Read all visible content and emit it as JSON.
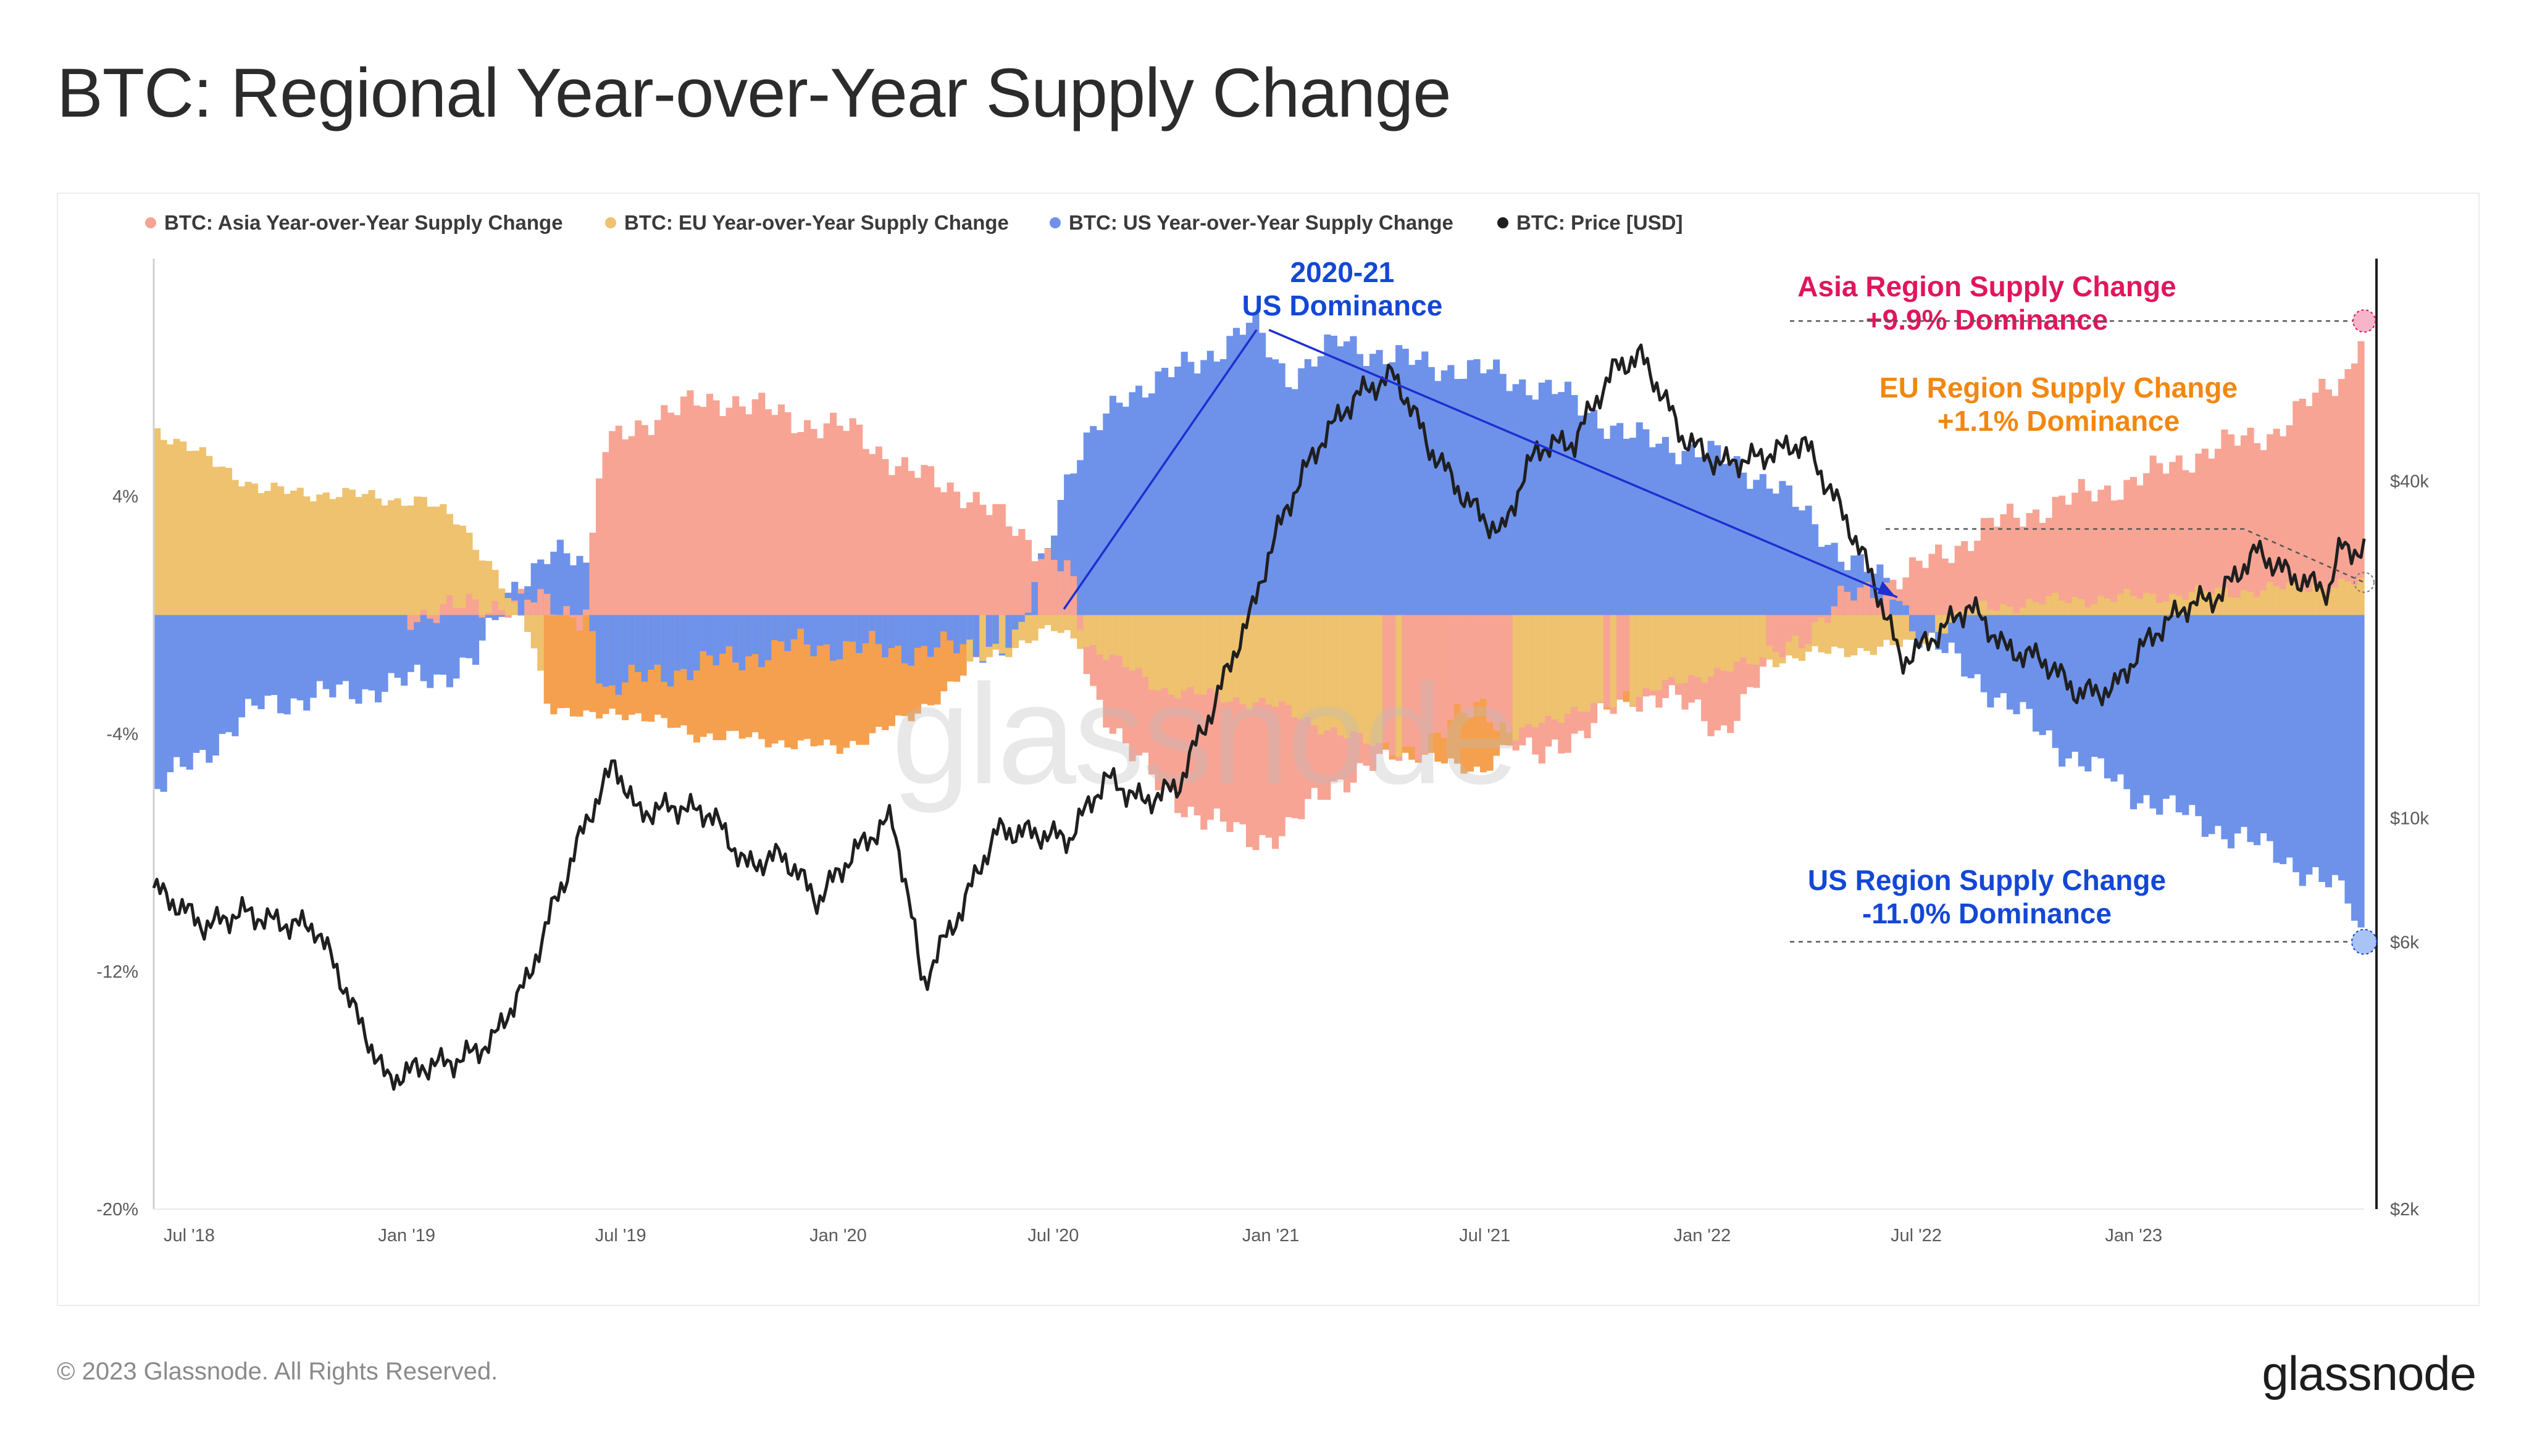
{
  "title": "BTC: Regional Year-over-Year Supply Change",
  "footer": {
    "copyright": "© 2023 Glassnode. All Rights Reserved.",
    "brand": "glassnode"
  },
  "colors": {
    "asia": "#f7a494",
    "eu": "#eec26e",
    "us": "#6e92ea",
    "price": "#1f1f1f",
    "eu_dominant": "#f5a04f",
    "us_anno": "#1347d6",
    "asia_anno": "#e0165c",
    "eu_anno": "#f2870f"
  },
  "chart_data": {
    "type": "bar",
    "legend": [
      {
        "label": "BTC: Asia Year-over-Year Supply Change",
        "color": "#f7a494"
      },
      {
        "label": "BTC: EU Year-over-Year Supply Change",
        "color": "#eec26e"
      },
      {
        "label": "BTC: US Year-over-Year Supply Change",
        "color": "#6e92ea"
      },
      {
        "label": "BTC: Price [USD]",
        "color": "#1f1f1f"
      }
    ],
    "legend_position": "top",
    "x_ticks": [
      "Jul '18",
      "Jan '19",
      "Jul '19",
      "Jan '20",
      "Jul '20",
      "Jan '21",
      "Jul '21",
      "Jan '22",
      "Jul '22",
      "Jan '23"
    ],
    "x_range": [
      "2018-06-01",
      "2023-07-15"
    ],
    "y_left": {
      "ticks": [
        "4%",
        "-4%",
        "-12%",
        "-20%"
      ],
      "range": [
        -20,
        12
      ]
    },
    "y_right": {
      "ticks": [
        "$40k",
        "$10k",
        "$6k",
        "$2k"
      ],
      "scale": "log",
      "range": [
        2000,
        100000
      ]
    },
    "series": [
      {
        "name": "BTC: Asia Year-over-Year Supply Change",
        "points": [
          [
            "2018-06-01",
            0
          ],
          [
            "2019-01-01",
            0
          ],
          [
            "2019-03-01",
            0.3
          ],
          [
            "2019-04-15",
            0.5
          ],
          [
            "2019-06-01",
            0
          ],
          [
            "2019-06-15",
            5.5
          ],
          [
            "2019-08-01",
            6.8
          ],
          [
            "2019-10-01",
            7.3
          ],
          [
            "2019-12-01",
            6.5
          ],
          [
            "2020-01-15",
            6.2
          ],
          [
            "2020-03-01",
            4.8
          ],
          [
            "2020-04-15",
            4.2
          ],
          [
            "2020-06-01",
            2.8
          ],
          [
            "2020-07-15",
            1.5
          ],
          [
            "2020-08-01",
            -2.5
          ],
          [
            "2020-10-01",
            -6
          ],
          [
            "2020-12-15",
            -7.6
          ],
          [
            "2021-01-15",
            -7.2
          ],
          [
            "2021-03-01",
            -5.5
          ],
          [
            "2021-05-01",
            -4.5
          ],
          [
            "2021-07-01",
            -3
          ],
          [
            "2021-08-15",
            -5
          ],
          [
            "2021-10-01",
            -3.5
          ],
          [
            "2021-12-01",
            -2.5
          ],
          [
            "2022-01-15",
            -4
          ],
          [
            "2022-03-01",
            -1.5
          ],
          [
            "2022-05-01",
            0.5
          ],
          [
            "2022-07-01",
            1.5
          ],
          [
            "2022-09-01",
            3
          ],
          [
            "2022-11-01",
            3.8
          ],
          [
            "2023-01-01",
            4.5
          ],
          [
            "2023-03-01",
            5.5
          ],
          [
            "2023-05-01",
            6.2
          ],
          [
            "2023-07-01",
            8.2
          ],
          [
            "2023-07-15",
            9.9
          ]
        ]
      },
      {
        "name": "BTC: EU Year-over-Year Supply Change",
        "points": [
          [
            "2018-06-01",
            6.3
          ],
          [
            "2018-09-01",
            4.2
          ],
          [
            "2018-12-01",
            4.0
          ],
          [
            "2019-01-15",
            3.8
          ],
          [
            "2019-02-15",
            3.2
          ],
          [
            "2019-03-15",
            1.5
          ],
          [
            "2019-04-01",
            0.2
          ],
          [
            "2019-04-15",
            -0.5
          ],
          [
            "2019-05-01",
            -3
          ],
          [
            "2019-06-01",
            -3.5
          ],
          [
            "2019-07-01",
            -3.2
          ],
          [
            "2019-09-01",
            -4
          ],
          [
            "2019-11-01",
            -4.2
          ],
          [
            "2020-01-01",
            -4.5
          ],
          [
            "2020-03-01",
            -3.5
          ],
          [
            "2020-05-01",
            -1.5
          ],
          [
            "2020-07-01",
            -0.5
          ],
          [
            "2020-08-01",
            -1
          ],
          [
            "2020-10-01",
            -2.5
          ],
          [
            "2021-01-01",
            -3
          ],
          [
            "2021-03-01",
            -4
          ],
          [
            "2021-05-01",
            -4.8
          ],
          [
            "2021-07-01",
            -5.2
          ],
          [
            "2021-08-15",
            -3.5
          ],
          [
            "2021-10-01",
            -3.2
          ],
          [
            "2022-01-01",
            -2
          ],
          [
            "2022-03-01",
            -1.5
          ],
          [
            "2022-05-01",
            -1.2
          ],
          [
            "2022-07-01",
            -1
          ],
          [
            "2022-08-15",
            0.2
          ],
          [
            "2022-11-01",
            0.5
          ],
          [
            "2023-01-01",
            0.6
          ],
          [
            "2023-04-01",
            0.8
          ],
          [
            "2023-07-15",
            1.1
          ]
        ]
      },
      {
        "name": "BTC: US Year-over-Year Supply Change",
        "points": [
          [
            "2018-06-01",
            -6
          ],
          [
            "2018-09-01",
            -3
          ],
          [
            "2018-12-01",
            -2.5
          ],
          [
            "2019-02-01",
            -2
          ],
          [
            "2019-03-01",
            -1.5
          ],
          [
            "2019-04-01",
            1
          ],
          [
            "2019-05-01",
            2
          ],
          [
            "2019-06-01",
            1.8
          ],
          [
            "2019-06-15",
            -2.5
          ],
          [
            "2019-08-01",
            -2
          ],
          [
            "2019-10-01",
            -1.5
          ],
          [
            "2019-12-01",
            -1
          ],
          [
            "2020-03-01",
            -1.2
          ],
          [
            "2020-06-01",
            -1
          ],
          [
            "2020-07-15",
            5
          ],
          [
            "2020-09-01",
            7.5
          ],
          [
            "2020-11-01",
            8.5
          ],
          [
            "2020-12-15",
            9.8
          ],
          [
            "2021-01-15",
            8
          ],
          [
            "2021-03-01",
            9.2
          ],
          [
            "2021-05-01",
            8.5
          ],
          [
            "2021-07-01",
            8.2
          ],
          [
            "2021-09-01",
            7.5
          ],
          [
            "2021-11-01",
            6
          ],
          [
            "2022-01-01",
            5.5
          ],
          [
            "2022-03-01",
            4.5
          ],
          [
            "2022-05-01",
            2
          ],
          [
            "2022-06-15",
            0.8
          ],
          [
            "2022-07-01",
            -0.5
          ],
          [
            "2022-09-01",
            -2.5
          ],
          [
            "2022-11-01",
            -4.5
          ],
          [
            "2023-01-01",
            -6
          ],
          [
            "2023-03-01",
            -7
          ],
          [
            "2023-05-01",
            -8
          ],
          [
            "2023-07-01",
            -9.5
          ],
          [
            "2023-07-15",
            -11.0
          ]
        ]
      },
      {
        "name": "BTC: Price [USD]",
        "points": [
          [
            "2018-06-01",
            7500
          ],
          [
            "2018-07-15",
            6400
          ],
          [
            "2018-08-15",
            6800
          ],
          [
            "2018-09-15",
            6500
          ],
          [
            "2018-10-15",
            6400
          ],
          [
            "2018-11-20",
            4400
          ],
          [
            "2018-12-15",
            3400
          ],
          [
            "2019-01-15",
            3600
          ],
          [
            "2019-02-15",
            3700
          ],
          [
            "2019-03-15",
            4000
          ],
          [
            "2019-04-15",
            5200
          ],
          [
            "2019-05-15",
            7800
          ],
          [
            "2019-06-26",
            12500
          ],
          [
            "2019-07-15",
            10200
          ],
          [
            "2019-08-15",
            10500
          ],
          [
            "2019-09-15",
            10200
          ],
          [
            "2019-10-15",
            8200
          ],
          [
            "2019-11-15",
            8600
          ],
          [
            "2019-12-15",
            7100
          ],
          [
            "2020-01-15",
            8700
          ],
          [
            "2020-02-15",
            10000
          ],
          [
            "2020-03-12",
            5000
          ],
          [
            "2020-04-15",
            6900
          ],
          [
            "2020-05-15",
            9500
          ],
          [
            "2020-06-15",
            9400
          ],
          [
            "2020-07-15",
            9200
          ],
          [
            "2020-08-15",
            11800
          ],
          [
            "2020-09-15",
            10700
          ],
          [
            "2020-10-15",
            11400
          ],
          [
            "2020-11-15",
            16000
          ],
          [
            "2020-12-15",
            23000
          ],
          [
            "2021-01-15",
            36000
          ],
          [
            "2021-02-15",
            48000
          ],
          [
            "2021-03-15",
            57000
          ],
          [
            "2021-04-15",
            62000
          ],
          [
            "2021-05-15",
            46000
          ],
          [
            "2021-06-15",
            37000
          ],
          [
            "2021-07-15",
            32000
          ],
          [
            "2021-08-15",
            46000
          ],
          [
            "2021-09-15",
            47000
          ],
          [
            "2021-10-20",
            64000
          ],
          [
            "2021-11-10",
            67000
          ],
          [
            "2021-12-15",
            48000
          ],
          [
            "2022-01-15",
            43000
          ],
          [
            "2022-02-15",
            44000
          ],
          [
            "2022-03-28",
            47000
          ],
          [
            "2022-04-15",
            40000
          ],
          [
            "2022-05-15",
            30000
          ],
          [
            "2022-06-18",
            19000
          ],
          [
            "2022-07-15",
            21000
          ],
          [
            "2022-08-15",
            24000
          ],
          [
            "2022-09-15",
            20000
          ],
          [
            "2022-10-15",
            19300
          ],
          [
            "2022-11-15",
            16700
          ],
          [
            "2022-12-15",
            17000
          ],
          [
            "2023-01-15",
            21000
          ],
          [
            "2023-02-15",
            24000
          ],
          [
            "2023-03-15",
            25000
          ],
          [
            "2023-04-15",
            30000
          ],
          [
            "2023-05-15",
            27000
          ],
          [
            "2023-06-15",
            25500
          ],
          [
            "2023-06-25",
            30500
          ],
          [
            "2023-07-15",
            30000
          ]
        ]
      }
    ],
    "annotations": {
      "us_peak": {
        "line1": "2020-21",
        "line2": "US Dominance",
        "color": "#1347d6"
      },
      "asia": {
        "line1": "Asia Region Supply Change",
        "line2": "+9.9% Dominance",
        "color": "#e0165c",
        "value": 9.9
      },
      "eu": {
        "line1": "EU Region Supply Change",
        "line2": "+1.1% Dominance",
        "color": "#f2870f",
        "value": 1.1
      },
      "us": {
        "line1": "US Region Supply Change",
        "line2": "-11.0% Dominance",
        "color": "#1347d6",
        "value": -11.0
      }
    },
    "watermark": "glassnode"
  }
}
